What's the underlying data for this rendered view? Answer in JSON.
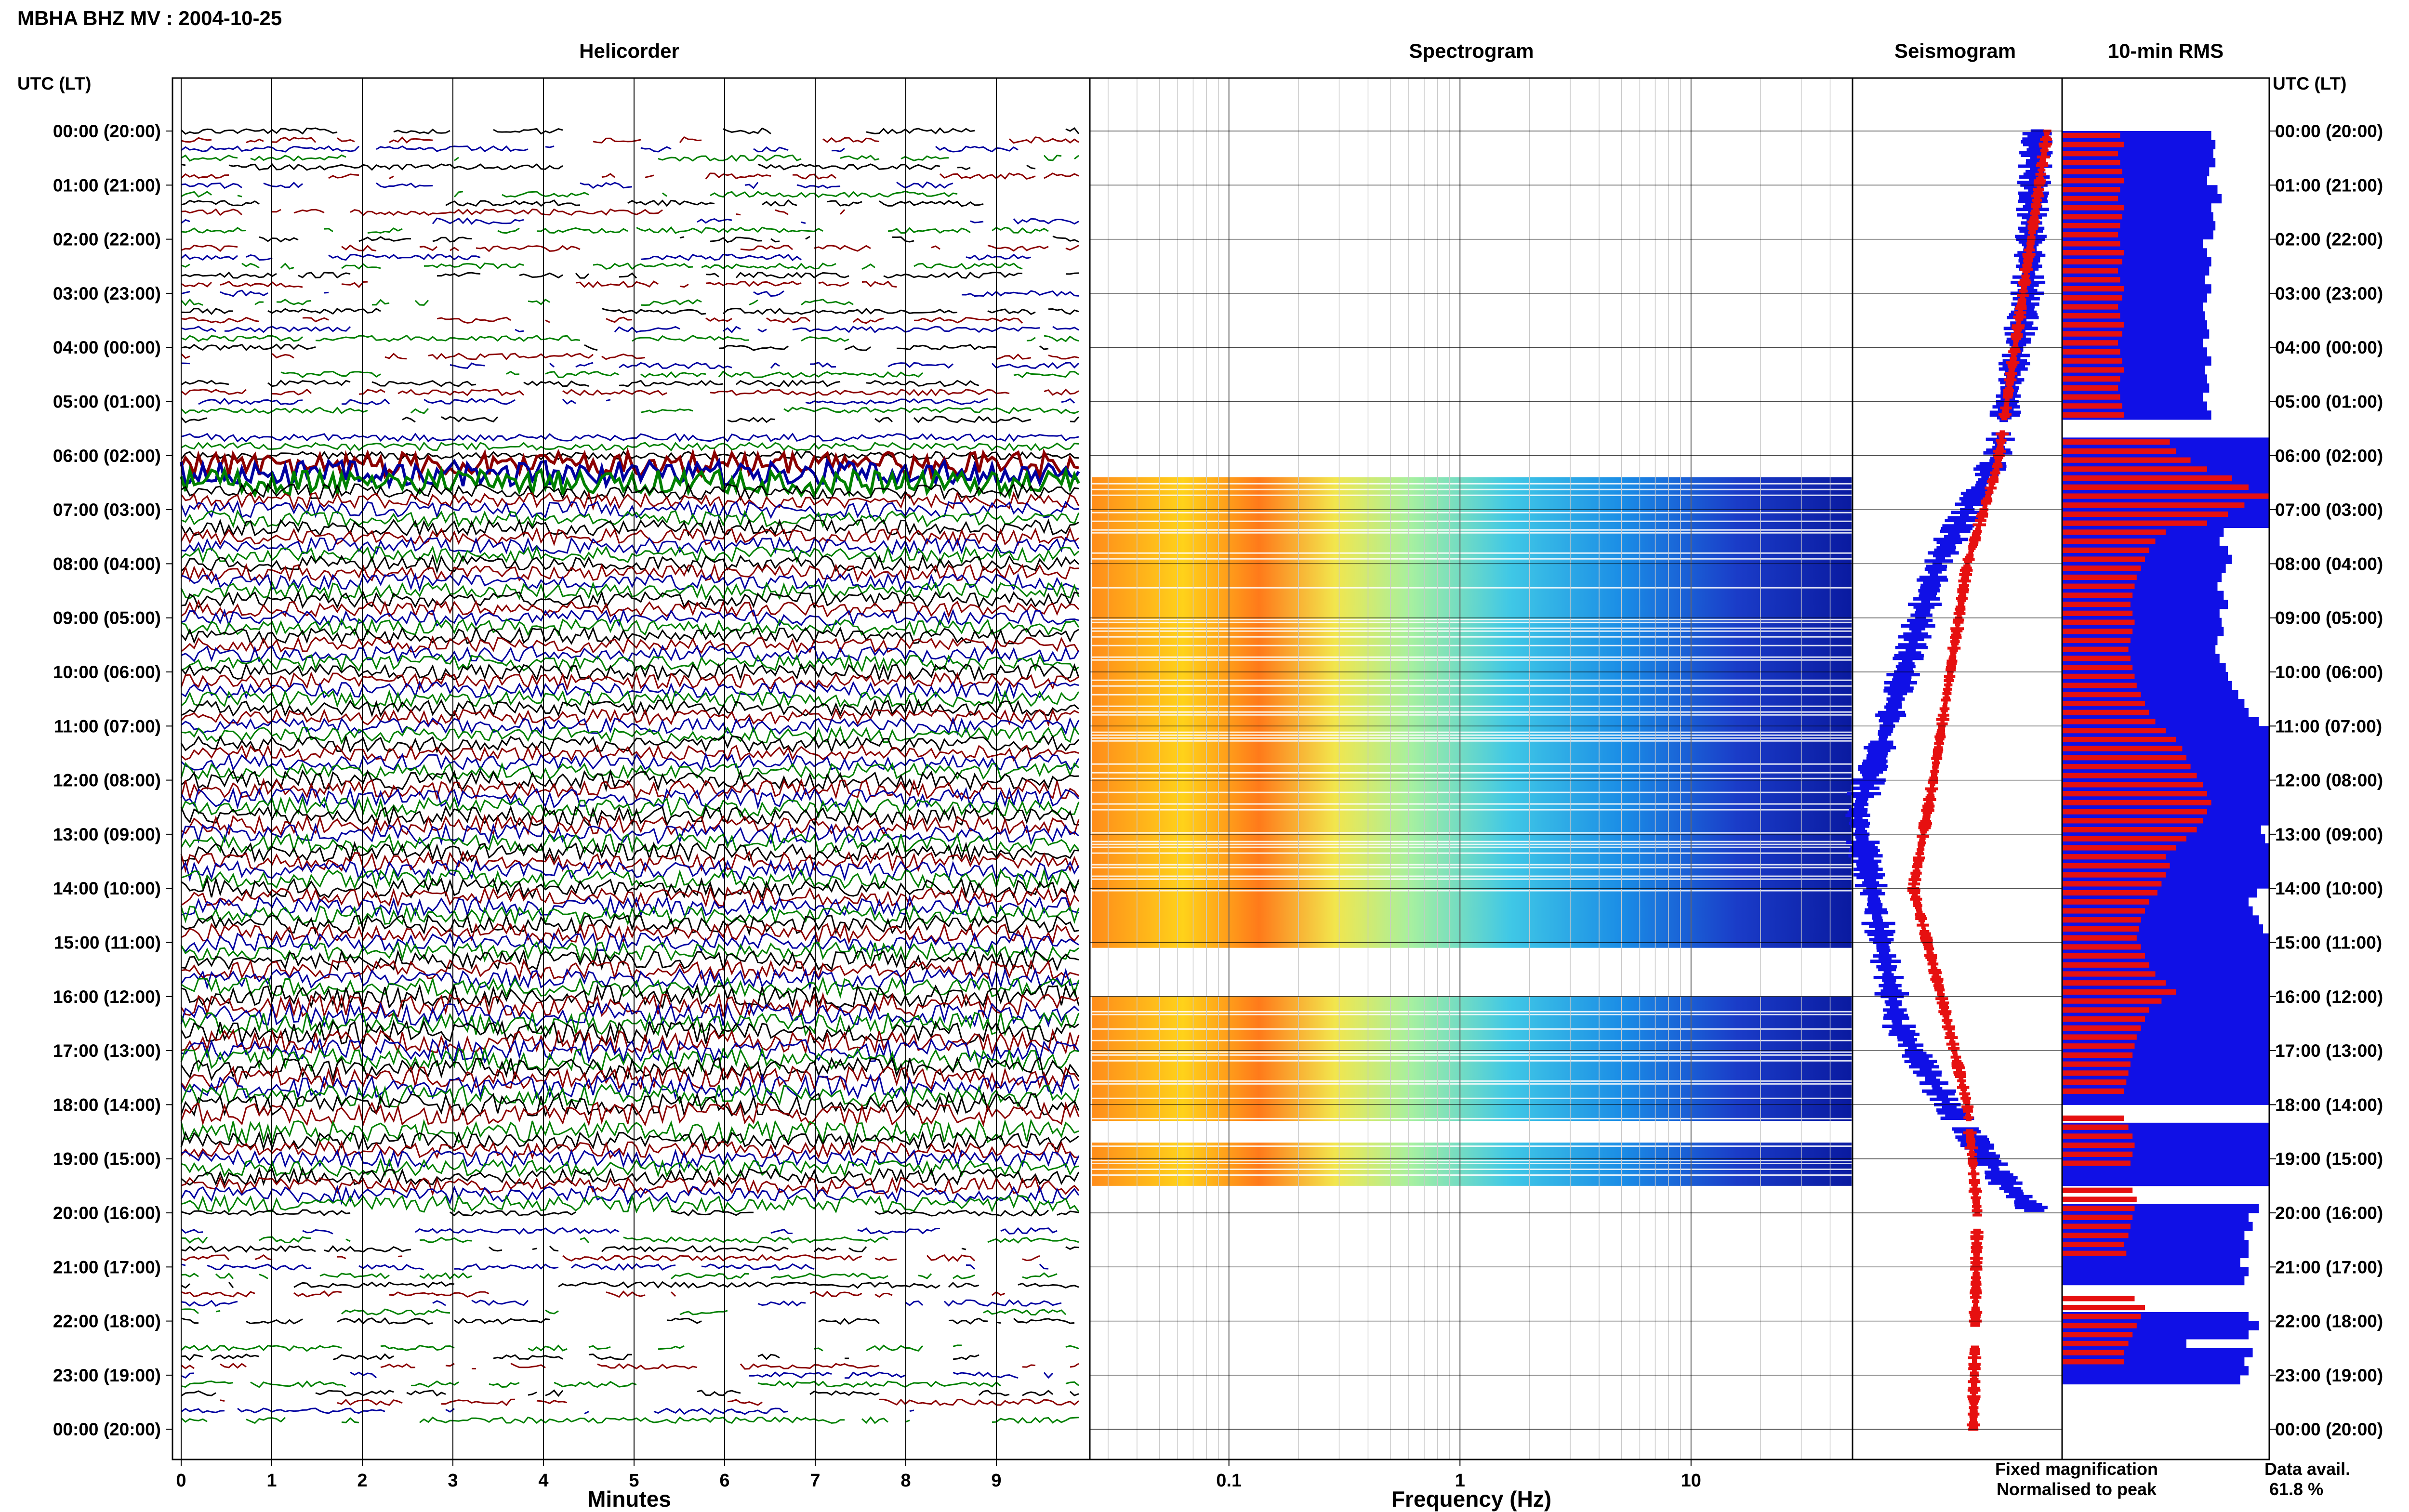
{
  "header": {
    "title": "MBHA BHZ MV : 2004-10-25"
  },
  "panels": {
    "helicorder": "Helicorder",
    "spectrogram": "Spectrogram",
    "seismogram": "Seismogram",
    "rms": "10-min RMS"
  },
  "axes": {
    "left_header": "UTC (LT)",
    "right_header": "UTC (LT)",
    "minutes_label": "Minutes",
    "frequency_label": "Frequency (Hz)"
  },
  "legend": {
    "fixed": "Fixed magnification",
    "normalised": "Normalised to peak",
    "fixed_color": "#1010e6",
    "normalised_color": "#e61010"
  },
  "data_avail": {
    "label": "Data avail.",
    "value": "61.8 %"
  },
  "chart_data": {
    "type": "seismic-summary",
    "hour_labels": [
      "00:00 (20:00)",
      "01:00 (21:00)",
      "02:00 (22:00)",
      "03:00 (23:00)",
      "04:00 (00:00)",
      "05:00 (01:00)",
      "06:00 (02:00)",
      "07:00 (03:00)",
      "08:00 (04:00)",
      "09:00 (05:00)",
      "10:00 (06:00)",
      "11:00 (07:00)",
      "12:00 (08:00)",
      "13:00 (09:00)",
      "14:00 (10:00)",
      "15:00 (11:00)",
      "16:00 (12:00)",
      "17:00 (13:00)",
      "18:00 (14:00)",
      "19:00 (15:00)",
      "20:00 (16:00)",
      "21:00 (17:00)",
      "22:00 (18:00)",
      "23:00 (19:00)",
      "00:00 (20:00)"
    ],
    "minute_ticks": [
      "0",
      "1",
      "2",
      "3",
      "4",
      "5",
      "6",
      "7",
      "8",
      "9"
    ],
    "frequency_ticks": [
      "0.1",
      "1",
      "10"
    ],
    "frequency_range_hz": [
      0.025,
      50
    ],
    "trace_colors": [
      "#000000",
      "#8b0000",
      "#0000a0",
      "#008000"
    ],
    "data_gaps_utc_hours": [
      [
        5.35,
        5.55
      ],
      [
        18.3,
        18.45
      ],
      [
        20.05,
        20.3
      ],
      [
        22.1,
        22.45
      ]
    ],
    "spectrogram_segments_utc_hours": [
      [
        6.4,
        12.0
      ],
      [
        12.0,
        15.1
      ],
      [
        16.0,
        18.3
      ],
      [
        18.7,
        19.5
      ]
    ],
    "seismogram_series": [
      {
        "name": "Fixed magnification",
        "normalised_peak_hours": [
          [
            0,
            0.1
          ],
          [
            3,
            0.15
          ],
          [
            6,
            0.3
          ],
          [
            8,
            0.6
          ],
          [
            11,
            0.85
          ],
          [
            12.6,
            1.0
          ],
          [
            16.5,
            0.8
          ],
          [
            18.0,
            0.55
          ],
          [
            19.5,
            0.25
          ],
          [
            20,
            0.1
          ]
        ]
      },
      {
        "name": "Normalised to peak",
        "normalised_peak_hours": [
          [
            0,
            0.05
          ],
          [
            6.2,
            0.3
          ],
          [
            8,
            0.45
          ],
          [
            12,
            0.62
          ],
          [
            14.0,
            0.72
          ],
          [
            16,
            0.58
          ],
          [
            18,
            0.45
          ],
          [
            20,
            0.4
          ],
          [
            24,
            0.42
          ]
        ]
      }
    ],
    "rms_relative": {
      "fixed": [
        0.72,
        0.74,
        0.73,
        0.74,
        0.71,
        0.7,
        0.75,
        0.77,
        0.72,
        0.73,
        0.74,
        0.73,
        0.68,
        0.7,
        0.72,
        0.71,
        0.69,
        0.72,
        0.7,
        0.68,
        0.69,
        0.7,
        0.71,
        0.68,
        0.7,
        0.72,
        0.69,
        0.7,
        0.71,
        0.68,
        0.7,
        0.72,
        0.0,
        0.0,
        1.0,
        1.0,
        1.0,
        1.0,
        1.0,
        1.0,
        1.0,
        1.0,
        1.0,
        1.0,
        0.78,
        0.76,
        0.8,
        0.82,
        0.79,
        0.77,
        0.75,
        0.78,
        0.8,
        0.76,
        0.77,
        0.78,
        0.75,
        0.74,
        0.76,
        0.79,
        0.8,
        0.82,
        0.85,
        0.88,
        0.9,
        0.95,
        1.0,
        1.0,
        1.0,
        1.0,
        1.0,
        1.0,
        1.0,
        1.0,
        1.0,
        1.0,
        1.0,
        0.96,
        0.98,
        1.0,
        1.0,
        1.0,
        1.0,
        1.0,
        0.94,
        0.9,
        0.92,
        0.95,
        0.97,
        1.0,
        1.0,
        1.0,
        1.0,
        1.0,
        1.0,
        1.0,
        1.0,
        1.0,
        1.0,
        1.0,
        1.0,
        1.0,
        1.0,
        1.0,
        1.0,
        1.0,
        1.0,
        1.0,
        0.0,
        0.0,
        1.0,
        1.0,
        1.0,
        1.0,
        1.0,
        1.0,
        1.0,
        0.0,
        0.0,
        0.95,
        0.9,
        0.92,
        0.88,
        0.9,
        0.9,
        0.86,
        0.9,
        0.88,
        0.0,
        0.0,
        0.0,
        0.9,
        0.95,
        0.9,
        0.6,
        0.92,
        0.88,
        0.9,
        0.86
      ],
      "normalised": [
        0.28,
        0.3,
        0.27,
        0.28,
        0.29,
        0.3,
        0.28,
        0.27,
        0.3,
        0.29,
        0.28,
        0.27,
        0.28,
        0.3,
        0.29,
        0.27,
        0.28,
        0.3,
        0.29,
        0.27,
        0.28,
        0.3,
        0.29,
        0.27,
        0.28,
        0.29,
        0.3,
        0.28,
        0.27,
        0.28,
        0.29,
        0.3,
        0.0,
        0.0,
        0.52,
        0.55,
        0.62,
        0.7,
        0.82,
        0.9,
        1.0,
        0.88,
        0.8,
        0.7,
        0.5,
        0.45,
        0.42,
        0.4,
        0.38,
        0.36,
        0.35,
        0.34,
        0.33,
        0.34,
        0.35,
        0.34,
        0.33,
        0.32,
        0.33,
        0.34,
        0.35,
        0.36,
        0.38,
        0.4,
        0.42,
        0.45,
        0.5,
        0.55,
        0.58,
        0.6,
        0.62,
        0.65,
        0.68,
        0.7,
        0.72,
        0.7,
        0.68,
        0.65,
        0.6,
        0.55,
        0.5,
        0.52,
        0.5,
        0.48,
        0.46,
        0.42,
        0.4,
        0.38,
        0.37,
        0.36,
        0.38,
        0.4,
        0.42,
        0.45,
        0.5,
        0.55,
        0.48,
        0.42,
        0.4,
        0.38,
        0.36,
        0.35,
        0.34,
        0.33,
        0.32,
        0.31,
        0.3,
        0.0,
        0.0,
        0.3,
        0.32,
        0.34,
        0.35,
        0.34,
        0.33,
        0.0,
        0.0,
        0.34,
        0.36,
        0.35,
        0.34,
        0.33,
        0.32,
        0.3,
        0.31,
        0.0,
        0.0,
        0.0,
        0.0,
        0.35,
        0.4,
        0.38,
        0.36,
        0.34,
        0.32,
        0.3,
        0.3
      ]
    }
  }
}
